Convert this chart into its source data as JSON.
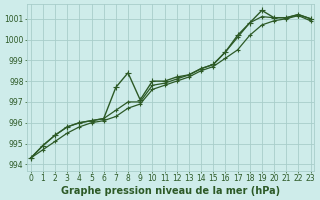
{
  "title": "Graphe pression niveau de la mer (hPa)",
  "background_color": "#ceecea",
  "grid_color": "#a8ceca",
  "line_color": "#2d5a27",
  "series": [
    {
      "name": "line1_spike",
      "x": [
        0,
        1,
        2,
        3,
        4,
        5,
        6,
        7,
        8,
        9,
        10,
        11,
        12,
        13,
        14,
        15,
        16,
        17,
        18,
        19,
        20,
        21,
        22,
        23
      ],
      "y": [
        994.3,
        994.9,
        995.4,
        995.8,
        996.0,
        996.1,
        996.2,
        997.7,
        998.4,
        997.1,
        998.0,
        998.0,
        998.2,
        998.3,
        998.6,
        998.8,
        999.4,
        1000.2,
        1000.8,
        1001.4,
        1001.05,
        1001.05,
        1001.2,
        1001.0
      ],
      "marker": "+",
      "markersize": 4,
      "lw": 1.0
    },
    {
      "name": "line2_mid",
      "x": [
        0,
        1,
        2,
        3,
        4,
        5,
        6,
        7,
        8,
        9,
        10,
        11,
        12,
        13,
        14,
        15,
        16,
        17,
        18,
        19,
        20,
        21,
        22,
        23
      ],
      "y": [
        994.3,
        994.9,
        995.4,
        995.8,
        996.0,
        996.1,
        996.2,
        996.6,
        997.0,
        997.0,
        997.8,
        997.9,
        998.1,
        998.3,
        998.6,
        998.8,
        999.4,
        1000.1,
        1000.8,
        1001.1,
        1001.05,
        1001.05,
        1001.2,
        1001.0
      ],
      "marker": "+",
      "markersize": 3,
      "lw": 0.9
    },
    {
      "name": "line3_base",
      "x": [
        0,
        1,
        2,
        3,
        4,
        5,
        6,
        7,
        8,
        9,
        10,
        11,
        12,
        13,
        14,
        15,
        16,
        17,
        18,
        19,
        20,
        21,
        22,
        23
      ],
      "y": [
        994.3,
        994.7,
        995.1,
        995.5,
        995.8,
        996.0,
        996.1,
        996.3,
        996.7,
        996.9,
        997.6,
        997.8,
        998.0,
        998.2,
        998.5,
        998.7,
        999.1,
        999.5,
        1000.2,
        1000.7,
        1000.9,
        1001.0,
        1001.15,
        1000.9
      ],
      "marker": "+",
      "markersize": 3,
      "lw": 0.9
    }
  ],
  "xlim": [
    0,
    23
  ],
  "ylim": [
    993.7,
    1001.7
  ],
  "yticks": [
    994,
    995,
    996,
    997,
    998,
    999,
    1000,
    1001
  ],
  "xticks": [
    0,
    1,
    2,
    3,
    4,
    5,
    6,
    7,
    8,
    9,
    10,
    11,
    12,
    13,
    14,
    15,
    16,
    17,
    18,
    19,
    20,
    21,
    22,
    23
  ],
  "tick_fontsize": 5.5,
  "title_fontsize": 7.0
}
